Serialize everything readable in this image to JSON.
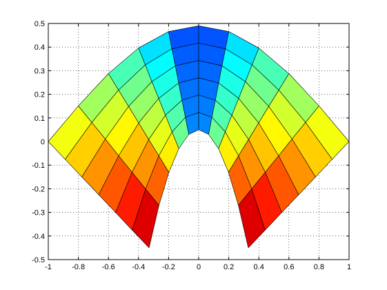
{
  "chart_data": {
    "type": "surface",
    "x": [
      [
        -0.33,
        -0.264,
        -0.198,
        -0.132,
        -0.066,
        0,
        0.066,
        0.132,
        0.198,
        0.264,
        0.33
      ],
      [
        -0.442,
        -0.353,
        -0.265,
        -0.177,
        -0.088,
        0,
        0.088,
        0.177,
        0.265,
        0.353,
        0.442
      ],
      [
        -0.553,
        -0.443,
        -0.332,
        -0.221,
        -0.111,
        0,
        0.111,
        0.221,
        0.332,
        0.443,
        0.553
      ],
      [
        -0.665,
        -0.532,
        -0.399,
        -0.266,
        -0.133,
        0,
        0.133,
        0.266,
        0.399,
        0.532,
        0.665
      ],
      [
        -0.777,
        -0.621,
        -0.466,
        -0.311,
        -0.155,
        0,
        0.155,
        0.311,
        0.466,
        0.621,
        0.777
      ],
      [
        -0.888,
        -0.711,
        -0.533,
        -0.355,
        -0.178,
        0,
        0.178,
        0.355,
        0.533,
        0.711,
        0.888
      ],
      [
        -1,
        -0.8,
        -0.6,
        -0.4,
        -0.2,
        0,
        0.2,
        0.4,
        0.6,
        0.8,
        1
      ]
    ],
    "y": [
      [
        -0.45,
        -0.27,
        -0.13,
        -0.03,
        0.03,
        0.05,
        0.03,
        -0.03,
        -0.13,
        -0.27,
        -0.45
      ],
      [
        -0.375,
        -0.2,
        -0.06,
        0.041,
        0.103,
        0.123,
        0.103,
        0.041,
        -0.06,
        -0.2,
        -0.375
      ],
      [
        -0.3,
        -0.13,
        0.009,
        0.112,
        0.175,
        0.197,
        0.175,
        0.112,
        0.009,
        -0.13,
        -0.3
      ],
      [
        -0.225,
        -0.06,
        0.079,
        0.183,
        0.248,
        0.27,
        0.248,
        0.183,
        0.079,
        -0.06,
        -0.225
      ],
      [
        -0.15,
        0.011,
        0.149,
        0.254,
        0.321,
        0.343,
        0.321,
        0.254,
        0.149,
        0.011,
        -0.15
      ],
      [
        -0.075,
        0.081,
        0.218,
        0.325,
        0.393,
        0.417,
        0.393,
        0.325,
        0.218,
        0.081,
        -0.075
      ],
      [
        0,
        0.151,
        0.288,
        0.396,
        0.466,
        0.49,
        0.466,
        0.396,
        0.288,
        0.151,
        0
      ]
    ],
    "z": [
      [
        1,
        0.872,
        0.735,
        0.584,
        0.405,
        0.12,
        0.405,
        0.584,
        0.735,
        0.872,
        1
      ],
      [
        0.937,
        0.819,
        0.691,
        0.551,
        0.385,
        0.12,
        0.385,
        0.551,
        0.691,
        0.819,
        0.937
      ],
      [
        0.873,
        0.764,
        0.646,
        0.517,
        0.364,
        0.12,
        0.364,
        0.517,
        0.646,
        0.764,
        0.873
      ],
      [
        0.81,
        0.71,
        0.602,
        0.484,
        0.344,
        0.12,
        0.344,
        0.484,
        0.602,
        0.71,
        0.81
      ],
      [
        0.747,
        0.656,
        0.558,
        0.45,
        0.323,
        0.12,
        0.323,
        0.45,
        0.558,
        0.656,
        0.747
      ],
      [
        0.683,
        0.601,
        0.514,
        0.417,
        0.302,
        0.12,
        0.302,
        0.417,
        0.514,
        0.601,
        0.683
      ],
      [
        0.62,
        0.548,
        0.47,
        0.384,
        0.282,
        0.12,
        0.282,
        0.384,
        0.47,
        0.548,
        0.62
      ]
    ],
    "colormap": "jet",
    "clim": [
      0,
      1
    ],
    "xlim": [
      -1,
      1
    ],
    "ylim": [
      -0.5,
      0.5
    ],
    "xticks": [
      -1,
      -0.8,
      -0.6,
      -0.4,
      -0.2,
      0,
      0.2,
      0.4,
      0.6,
      0.8,
      1
    ],
    "yticks": [
      -0.5,
      -0.4,
      -0.3,
      -0.2,
      -0.1,
      0,
      0.1,
      0.2,
      0.3,
      0.4,
      0.5
    ],
    "grid": true
  }
}
